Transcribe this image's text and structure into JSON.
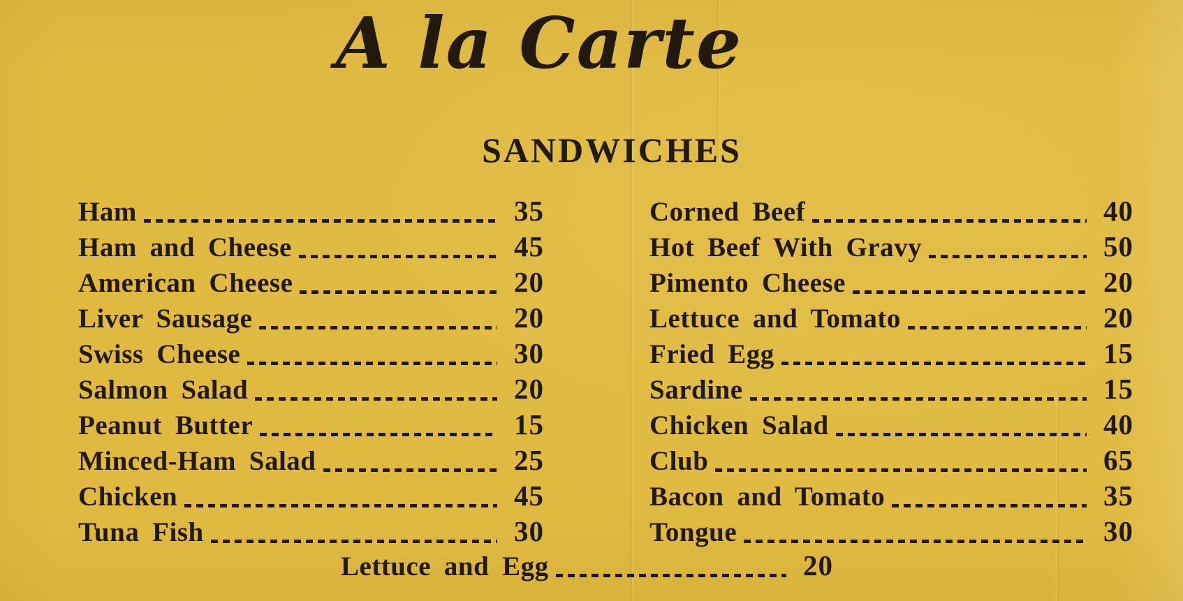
{
  "header": {
    "title": "A la Carte",
    "section": "SANDWICHES"
  },
  "menu": {
    "left_column": [
      {
        "name": "Ham",
        "price": "35"
      },
      {
        "name": "Ham and Cheese",
        "price": "45"
      },
      {
        "name": "American Cheese",
        "price": "20"
      },
      {
        "name": "Liver Sausage",
        "price": "20"
      },
      {
        "name": "Swiss Cheese",
        "price": "30"
      },
      {
        "name": "Salmon Salad",
        "price": "20"
      },
      {
        "name": "Peanut Butter",
        "price": "15"
      },
      {
        "name": "Minced-Ham Salad",
        "price": "25"
      },
      {
        "name": "Chicken",
        "price": "45"
      },
      {
        "name": "Tuna Fish",
        "price": "30"
      }
    ],
    "right_column": [
      {
        "name": "Corned Beef",
        "price": "40"
      },
      {
        "name": "Hot Beef With Gravy",
        "price": "50"
      },
      {
        "name": "Pimento Cheese",
        "price": "20"
      },
      {
        "name": "Lettuce and Tomato",
        "price": "20"
      },
      {
        "name": "Fried Egg",
        "price": "15"
      },
      {
        "name": "Sardine",
        "price": "15"
      },
      {
        "name": "Chicken Salad",
        "price": "40"
      },
      {
        "name": "Club",
        "price": "65"
      },
      {
        "name": "Bacon and Tomato",
        "price": "35"
      },
      {
        "name": "Tongue",
        "price": "30"
      }
    ],
    "footer_item": {
      "name": "Lettuce and Egg",
      "price": "20"
    }
  },
  "colors": {
    "paper": "#dfb940",
    "ink": "#231a0e"
  }
}
